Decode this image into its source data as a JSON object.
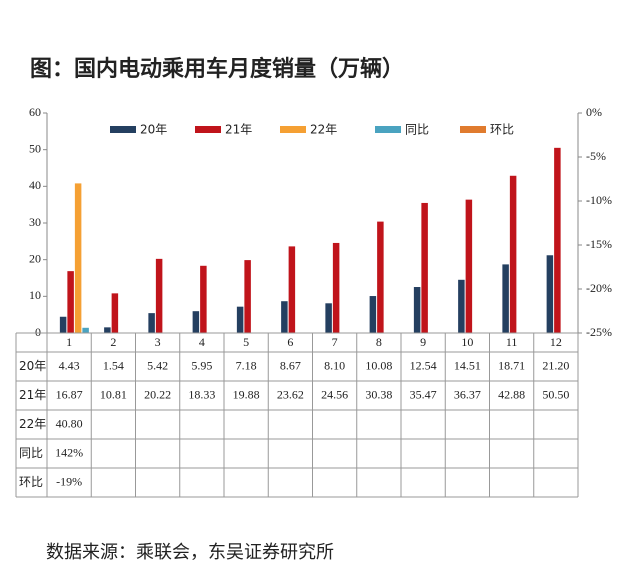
{
  "chart_data": {
    "type": "bar",
    "title": "图：国内电动乘用车月度销量（万辆）",
    "source": "数据来源：乘联会，东吴证券研究所",
    "categories": [
      "1",
      "2",
      "3",
      "4",
      "5",
      "6",
      "7",
      "8",
      "9",
      "10",
      "11",
      "12"
    ],
    "series": [
      {
        "name": "20年",
        "color": "#243f60",
        "values": [
          4.43,
          1.54,
          5.42,
          5.95,
          7.18,
          8.67,
          8.1,
          10.08,
          12.54,
          14.51,
          18.71,
          21.2
        ],
        "value_labels": [
          "4.43",
          "1.54",
          "5.42",
          "5.95",
          "7.18",
          "8.67",
          "8.10",
          "10.08",
          "12.54",
          "14.51",
          "18.71",
          "21.20"
        ]
      },
      {
        "name": "21年",
        "color": "#c0141b",
        "values": [
          16.87,
          10.81,
          20.22,
          18.33,
          19.88,
          23.62,
          24.56,
          30.38,
          35.47,
          36.37,
          42.88,
          50.5
        ],
        "value_labels": [
          "16.87",
          "10.81",
          "20.22",
          "18.33",
          "19.88",
          "23.62",
          "24.56",
          "30.38",
          "35.47",
          "36.37",
          "42.88",
          "50.50"
        ]
      },
      {
        "name": "22年",
        "color": "#f5a033",
        "values": [
          40.8,
          null,
          null,
          null,
          null,
          null,
          null,
          null,
          null,
          null,
          null,
          null
        ],
        "value_labels": [
          "40.80",
          null,
          null,
          null,
          null,
          null,
          null,
          null,
          null,
          null,
          null,
          null
        ]
      },
      {
        "name": "同比",
        "color": "#4aa3c0",
        "values": [
          1.42,
          null,
          null,
          null,
          null,
          null,
          null,
          null,
          null,
          null,
          null,
          null
        ],
        "value_labels": [
          "142%",
          null,
          null,
          null,
          null,
          null,
          null,
          null,
          null,
          null,
          null,
          null
        ]
      },
      {
        "name": "环比",
        "color": "#e07b2e",
        "kind": "line",
        "axis": "y2",
        "values": [
          -19,
          null,
          null,
          null,
          null,
          null,
          null,
          null,
          null,
          null,
          null,
          null
        ],
        "value_labels": [
          "-19%",
          null,
          null,
          null,
          null,
          null,
          null,
          null,
          null,
          null,
          null,
          null
        ]
      }
    ],
    "ylim": [
      0,
      60
    ],
    "yticks": [
      0,
      10,
      20,
      30,
      40,
      50,
      60
    ],
    "y2lim": [
      -25,
      0
    ],
    "y2ticks": [
      {
        "value": 0,
        "label": "0%"
      },
      {
        "value": -5,
        "label": "-5%"
      },
      {
        "value": -10,
        "label": "-10%"
      },
      {
        "value": -15,
        "label": "-15%"
      },
      {
        "value": -20,
        "label": "-20%"
      },
      {
        "value": -25,
        "label": "-25%"
      }
    ],
    "legend": "top"
  }
}
